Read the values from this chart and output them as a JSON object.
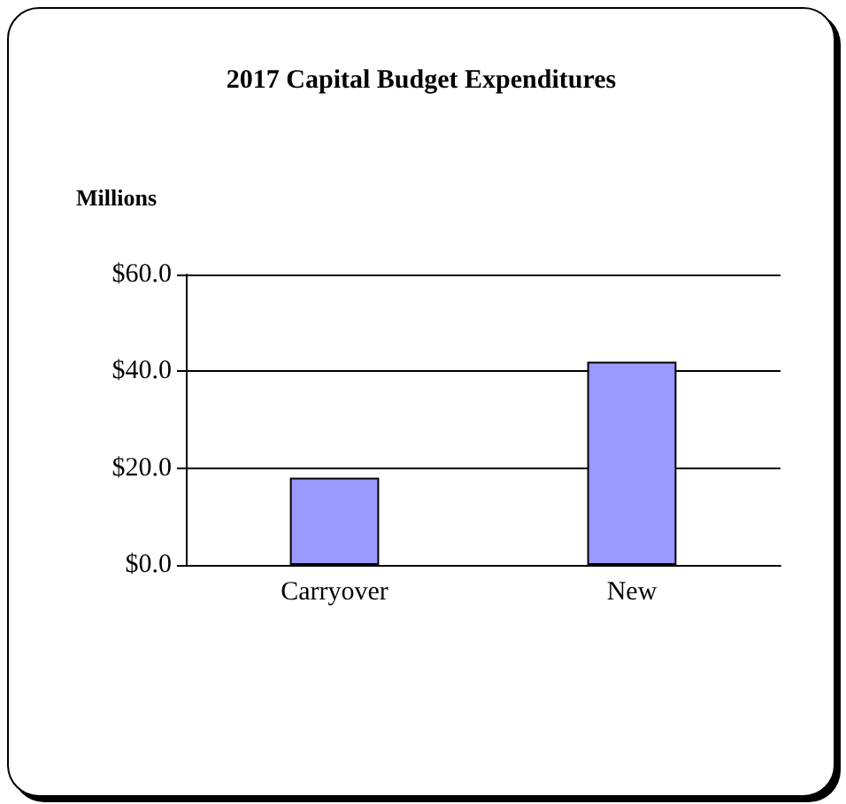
{
  "chart_data": {
    "type": "bar",
    "title": "2017 Capital Budget Expenditures",
    "ylabel": "Millions",
    "categories": [
      "Carryover",
      "New"
    ],
    "values": [
      18,
      42
    ],
    "color": "#9999ff",
    "ylim": [
      0,
      60
    ],
    "yticks": [
      {
        "value": 0,
        "label": "$0.0"
      },
      {
        "value": 20,
        "label": "$20.0"
      },
      {
        "value": 40,
        "label": "$40.0"
      },
      {
        "value": 60,
        "label": "$60.0"
      }
    ],
    "grid": true
  }
}
